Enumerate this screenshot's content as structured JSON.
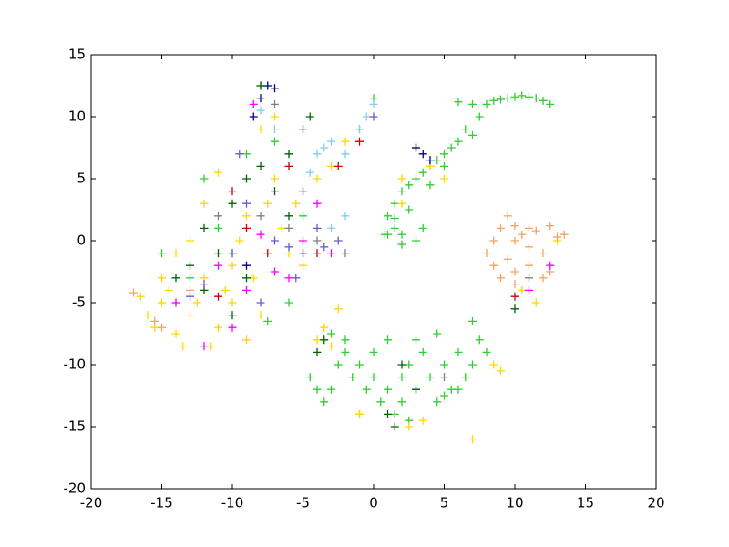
{
  "chart_data": {
    "type": "scatter",
    "xlim": [
      -20,
      20
    ],
    "xticks": [
      -20,
      -15,
      -10,
      -5,
      0,
      5,
      10,
      15,
      20
    ],
    "ylim": [
      -20,
      15
    ],
    "yticks": [
      -20,
      -15,
      -10,
      -5,
      0,
      5,
      10,
      15
    ],
    "marker": "+",
    "series": [
      {
        "color": "#32cd32",
        "x": [
          6,
          7,
          7.5,
          8,
          8.5,
          9,
          9.5,
          10,
          10.5,
          11,
          11.5,
          12,
          12.5,
          6.5,
          7,
          6,
          5.5,
          5,
          4.5,
          4,
          3.5,
          3,
          2.5,
          2,
          1.5,
          1,
          1.5,
          2,
          1,
          3,
          3.5,
          2,
          0.8,
          1.5,
          2.5,
          4,
          5,
          -4.5,
          -4,
          -3.5,
          -3,
          -2.5,
          -2,
          -1.5,
          -1,
          -0.5,
          0,
          0.5,
          1,
          1.5,
          2,
          2.5,
          3,
          3.5,
          4,
          4.5,
          5,
          5.5,
          6,
          6.5,
          7,
          7.5,
          8,
          7,
          6,
          2,
          0,
          -2,
          -3,
          1,
          3,
          4.5,
          5,
          -1,
          2.5,
          -15,
          -13,
          -10,
          -8,
          -7,
          -5,
          -9,
          -11,
          -6,
          -12,
          -1,
          0,
          -7.5
        ],
        "values": [
          11.2,
          11,
          10,
          11,
          11.3,
          11.4,
          11.5,
          11.6,
          11.7,
          11.6,
          11.5,
          11.3,
          11,
          9,
          8.5,
          8,
          7.5,
          7,
          6.5,
          6,
          5.5,
          5,
          4.5,
          4,
          3,
          2,
          1,
          0.5,
          0.5,
          0,
          1,
          -0.3,
          0.5,
          1.8,
          2.5,
          4.5,
          6,
          -11,
          -12,
          -13,
          -12,
          -10,
          -9,
          -11,
          -10,
          -12,
          -11,
          -13,
          -12,
          -14,
          -11,
          -10,
          -12,
          -9,
          -11,
          -13,
          -10,
          -12,
          -9,
          -11,
          -10,
          -8,
          -9,
          -6.5,
          -12,
          -13,
          -9,
          -8,
          -7.5,
          -8,
          -8,
          -7.5,
          -12.5,
          -14,
          -14.5,
          -1,
          -3,
          -1,
          12.5,
          8,
          2,
          7,
          1,
          -5,
          5,
          9,
          11.5,
          -6.5
        ]
      },
      {
        "color": "#ffd700",
        "x": [
          -16,
          -15.5,
          -15,
          -14.5,
          -14,
          -13.5,
          -13,
          -12.5,
          -12,
          -11.5,
          -11,
          -10.5,
          -10,
          -9.5,
          -9,
          -8.5,
          -8,
          -7.5,
          -7,
          -6.5,
          -6,
          -5.5,
          -5,
          -11,
          -12,
          -13,
          -14,
          -15,
          -16.5,
          -10,
          -9,
          -8,
          -7,
          -4,
          -3,
          -2,
          -4,
          -3.5,
          -2.5,
          -3,
          -1,
          2.5,
          7,
          9,
          8.5,
          3.5,
          2,
          2,
          5,
          4,
          10.5,
          11.5,
          13
        ],
        "values": [
          -6,
          -7,
          -5,
          -4,
          -7.5,
          -8.5,
          -6,
          -5,
          -3,
          -8.5,
          -7,
          -4,
          -2,
          0,
          2,
          -3,
          -6,
          3,
          5,
          1,
          -1,
          3,
          -2,
          5.5,
          3,
          0,
          -1,
          -3,
          -4.5,
          -5,
          -8,
          9,
          10,
          5,
          6,
          8,
          -8,
          -7,
          -5.5,
          -8.5,
          -14,
          -15,
          -16,
          -10.5,
          -10,
          -14.5,
          5,
          3,
          5,
          6,
          -4,
          -5,
          0
        ]
      },
      {
        "color": "#f4a460",
        "x": [
          8,
          8.5,
          9,
          9.5,
          10,
          10.5,
          11,
          11.5,
          12,
          12.5,
          13,
          13.5,
          9,
          10,
          11,
          12,
          9.5,
          10,
          8.5,
          11,
          12.5,
          10,
          -17,
          -15.5,
          -14,
          -13,
          -15
        ],
        "values": [
          -1,
          0,
          1,
          -1.5,
          1.2,
          0.5,
          -0.5,
          0.8,
          -1,
          1.2,
          0.3,
          0.5,
          -3,
          -2.5,
          -2,
          -3,
          2,
          0,
          -2,
          1,
          -2.5,
          -3.5,
          -4.2,
          -6.5,
          -5,
          -4,
          -7
        ]
      },
      {
        "color": "#006400",
        "x": [
          -13,
          -12,
          -11,
          -10,
          -9,
          -8,
          -7,
          -6,
          -5,
          -10,
          -9,
          -12,
          -4,
          -3.5,
          1,
          2,
          3,
          1.5,
          3,
          10,
          -14,
          -8,
          -6,
          -4.5
        ],
        "values": [
          -2,
          -4,
          -1,
          3,
          5,
          12.5,
          4,
          7,
          9,
          -6,
          -3,
          1,
          -9,
          -8,
          -14,
          -10,
          -12,
          -15,
          7.5,
          -5.5,
          -3,
          6,
          2,
          10
        ]
      },
      {
        "color": "#000080",
        "x": [
          -7.5,
          -8,
          -7,
          -8.5,
          3,
          3.5,
          4,
          -9,
          -5
        ],
        "values": [
          12.5,
          11.5,
          12.3,
          10,
          7.5,
          7,
          6.5,
          -2,
          -1
        ]
      },
      {
        "color": "#ff00ff",
        "x": [
          -14,
          -12,
          -11,
          -10,
          -9,
          -8,
          -7,
          -6,
          -5,
          -8.5,
          -3,
          -4,
          11,
          12.5
        ],
        "values": [
          -5,
          -8.5,
          -2,
          -7,
          -4,
          0.5,
          -2.5,
          -3,
          0,
          11,
          -1,
          3,
          -4,
          -2
        ]
      },
      {
        "color": "#cc0000",
        "x": [
          -11,
          -10,
          -9,
          -7.5,
          -5,
          -6,
          -4,
          -2.5,
          -1,
          10
        ],
        "values": [
          -4.5,
          4,
          1,
          -1,
          4,
          6,
          -1,
          6,
          8,
          -4.5
        ]
      },
      {
        "color": "#87ceeb",
        "x": [
          -4,
          -3.5,
          -3,
          -2,
          -1,
          -0.5,
          0,
          -2,
          -3,
          -8,
          -7,
          -4.5
        ],
        "values": [
          7,
          7.5,
          8,
          7,
          9,
          10,
          11,
          2,
          1,
          10.5,
          9,
          5.5
        ]
      },
      {
        "color": "#6a5acd",
        "x": [
          -12,
          -10,
          -9,
          -7,
          -6,
          -4,
          -3.5,
          -2.5,
          -8,
          -13,
          -5.5,
          0,
          -9.5
        ],
        "values": [
          -3.5,
          -1,
          3,
          0,
          -0.5,
          1,
          -0.5,
          0,
          -5,
          -4.5,
          -3,
          10,
          7
        ]
      },
      {
        "color": "#808080",
        "x": [
          -11,
          -8,
          -6,
          -7,
          -4,
          -2,
          5,
          11
        ],
        "values": [
          2,
          2,
          1,
          11,
          0,
          -1,
          -11,
          -3
        ]
      }
    ]
  }
}
